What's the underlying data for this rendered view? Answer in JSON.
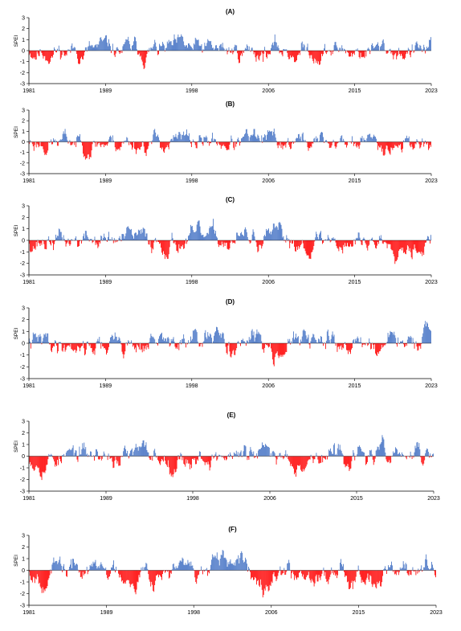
{
  "colors": {
    "positive": "#4472c4",
    "negative": "#ff0000",
    "axis": "#000000"
  },
  "chart_data": [
    {
      "type": "bar",
      "title": "(A)",
      "ylabel": "SPEI",
      "x_start": "1981-01",
      "x_end": "2023-12",
      "xticks": [
        "1981",
        "1989",
        "1998",
        "2006",
        "2015",
        "2023"
      ],
      "ylim": [
        -3,
        3
      ],
      "yticks": [
        "3",
        "2",
        "1",
        "0",
        "-1",
        "-2",
        "-3"
      ],
      "seed": 11,
      "grid": false
    },
    {
      "type": "bar",
      "title": "(B)",
      "ylabel": "SPEI",
      "x_start": "1981-01",
      "x_end": "2023-12",
      "xticks": [
        "1981",
        "1989",
        "1998",
        "2006",
        "2015",
        "2023"
      ],
      "ylim": [
        -3,
        3
      ],
      "yticks": [
        "3",
        "2",
        "1",
        "0",
        "-1",
        "-2",
        "-3"
      ],
      "seed": 23,
      "grid": false
    },
    {
      "type": "bar",
      "title": "(C)",
      "ylabel": "SPEI",
      "x_start": "1981-01",
      "x_end": "2023-12",
      "xticks": [
        "1981",
        "1989",
        "1998",
        "2006",
        "2015",
        "2023"
      ],
      "ylim": [
        -3,
        3
      ],
      "yticks": [
        "3",
        "2",
        "1",
        "0",
        "-1",
        "-2",
        "-3"
      ],
      "seed": 37,
      "grid": false
    },
    {
      "type": "bar",
      "title": "(D)",
      "ylabel": "SPEI",
      "x_start": "1981-01",
      "x_end": "2023-12",
      "xticks": [
        "1981",
        "1989",
        "1998",
        "2006",
        "2015",
        "2023"
      ],
      "ylim": [
        -3,
        3
      ],
      "yticks": [
        "3",
        "2",
        "1",
        "0",
        "-1",
        "-2",
        "-3"
      ],
      "seed": 41,
      "grid": false
    },
    {
      "type": "bar",
      "title": "(E)",
      "ylabel": "SPEI",
      "x_start": "1981-01",
      "x_end": "2023-12",
      "xticks": [
        "1981",
        "1989",
        "1998",
        "2006",
        "2015",
        "2023"
      ],
      "ylim": [
        -3,
        3
      ],
      "yticks": [
        "3",
        "2",
        "1",
        "0",
        "-1",
        "-2",
        "-3"
      ],
      "seed": 53,
      "grid": false
    },
    {
      "type": "bar",
      "title": "(F)",
      "ylabel": "SPEI",
      "x_start": "1981-01",
      "x_end": "2023-12",
      "xticks": [
        "1981",
        "1989",
        "1998",
        "2006",
        "2015",
        "2023"
      ],
      "ylim": [
        -3,
        3
      ],
      "yticks": [
        "3",
        "2",
        "1",
        "0",
        "-1",
        "-2",
        "-3"
      ],
      "seed": 67,
      "grid": false
    }
  ]
}
